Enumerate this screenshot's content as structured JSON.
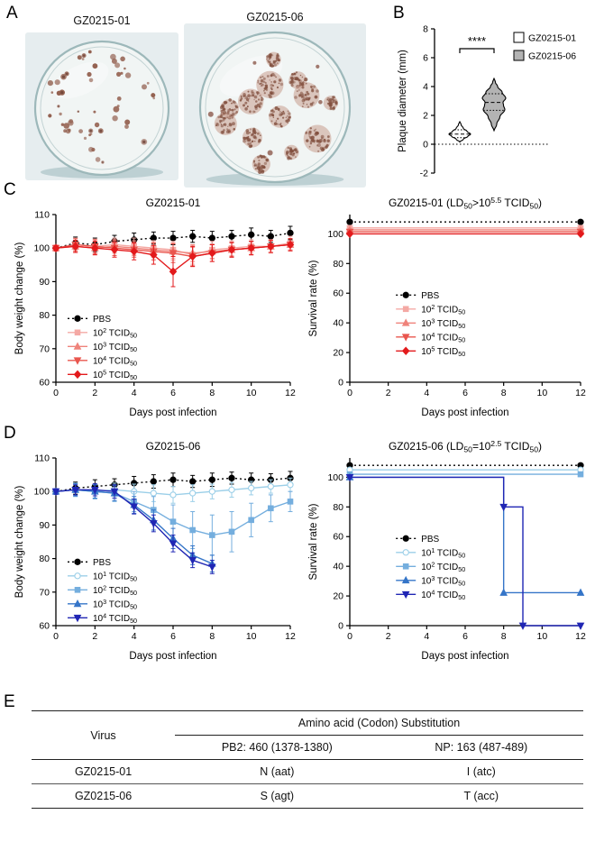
{
  "panels": {
    "A": "A",
    "B": "B",
    "C": "C",
    "D": "D",
    "E": "E"
  },
  "panelA": {
    "images": [
      {
        "label": "GZ0215-01",
        "plaque_count": 56,
        "plaque_size": "small"
      },
      {
        "label": "GZ0215-06",
        "plaque_count": 13,
        "plaque_size": "large"
      }
    ]
  },
  "chart_data": [
    {
      "id": "plaque-violin",
      "type": "violin",
      "ylabel": "Plaque diameter (mm)",
      "ylim": [
        -2,
        8
      ],
      "yticks": [
        -2,
        0,
        2,
        4,
        6,
        8
      ],
      "significance": "****",
      "zero_line": true,
      "legend": [
        {
          "label": "GZ0215-01",
          "fill": "#ffffff"
        },
        {
          "label": "GZ0215-06",
          "fill": "#b3b3b3"
        }
      ],
      "groups": [
        {
          "name": "GZ0215-01",
          "fill": "#ffffff",
          "median": 0.7,
          "q1": 0.45,
          "q3": 1.0,
          "min": 0.15,
          "max": 1.6,
          "profile": [
            [
              0.15,
              0
            ],
            [
              0.35,
              4
            ],
            [
              0.55,
              9
            ],
            [
              0.7,
              12
            ],
            [
              0.9,
              8
            ],
            [
              1.1,
              4
            ],
            [
              1.35,
              1.5
            ],
            [
              1.6,
              0
            ]
          ]
        },
        {
          "name": "GZ0215-06",
          "fill": "#b3b3b3",
          "median": 2.9,
          "q1": 2.35,
          "q3": 3.5,
          "min": 0.9,
          "max": 4.6,
          "profile": [
            [
              0.9,
              0
            ],
            [
              1.4,
              3
            ],
            [
              1.9,
              6.5
            ],
            [
              2.4,
              12
            ],
            [
              2.7,
              10.5
            ],
            [
              2.9,
              10
            ],
            [
              3.2,
              13
            ],
            [
              3.6,
              9
            ],
            [
              4.0,
              4
            ],
            [
              4.3,
              1.5
            ],
            [
              4.6,
              0
            ]
          ]
        }
      ]
    },
    {
      "id": "c-weight",
      "type": "line",
      "title": "GZ0215-01",
      "xlabel": "Days post infection",
      "ylabel": "Body weight change (%)",
      "xlim": [
        0,
        12
      ],
      "xticks": [
        0,
        2,
        4,
        6,
        8,
        10,
        12
      ],
      "ylim": [
        60,
        110
      ],
      "yticks": [
        60,
        70,
        80,
        90,
        100,
        110
      ],
      "x": [
        0,
        1,
        2,
        3,
        4,
        5,
        6,
        7,
        8,
        9,
        10,
        11,
        12
      ],
      "legend": {
        "x": 0.05,
        "y": 0.62
      },
      "series": [
        {
          "name": "PBS",
          "color": "#000000",
          "marker": "circle",
          "dash": "2,3",
          "values": [
            100,
            101.5,
            101,
            102,
            102.5,
            103,
            103,
            103.5,
            103,
            103.5,
            104,
            103.5,
            104.5
          ],
          "err": [
            0.8,
            1.8,
            2,
            1.8,
            2,
            1.8,
            2,
            1.8,
            2,
            1.8,
            2,
            1.8,
            2
          ]
        },
        {
          "name": "10^{2} TCID_{50}",
          "color": "#f4a9a4",
          "marker": "square",
          "values": [
            100,
            101,
            100.5,
            101,
            100.5,
            100,
            99.5,
            98,
            99.5,
            100,
            100.5,
            100.5,
            101.5
          ],
          "err": [
            0.8,
            2,
            2.2,
            2,
            2.5,
            2.2,
            2.5,
            2.8,
            2.5,
            2.2,
            2,
            2,
            2
          ]
        },
        {
          "name": "10^{3} TCID_{50}",
          "color": "#ef837b",
          "marker": "triangle-up",
          "values": [
            100,
            100.5,
            100,
            100.5,
            100,
            99.5,
            99,
            98.5,
            99,
            99.5,
            100,
            100.5,
            101
          ],
          "err": [
            0.8,
            1.8,
            2,
            2,
            2.2,
            2.2,
            2.5,
            2.5,
            2.2,
            2,
            2,
            1.8,
            1.8
          ]
        },
        {
          "name": "10^{4} TCID_{50}",
          "color": "#e9564e",
          "marker": "triangle-down",
          "values": [
            100,
            101,
            100.5,
            100,
            99.5,
            99,
            98.5,
            97.5,
            98.5,
            99.5,
            100,
            100.5,
            101
          ],
          "err": [
            0.8,
            1.8,
            2,
            2.2,
            2.2,
            2.5,
            2.8,
            2.8,
            2.5,
            2.2,
            2,
            1.8,
            1.8
          ]
        },
        {
          "name": "10^{5} TCID_{50}",
          "color": "#e31a1c",
          "marker": "diamond",
          "values": [
            100,
            100.5,
            100,
            99.5,
            99,
            98,
            93,
            97.5,
            98.5,
            99.5,
            100,
            100.5,
            101
          ],
          "err": [
            0.8,
            1.8,
            2,
            2.2,
            2.5,
            2.8,
            4.5,
            3,
            2.5,
            2.2,
            2,
            1.8,
            1.8
          ]
        }
      ]
    },
    {
      "id": "c-survival",
      "type": "line",
      "step": true,
      "title": "GZ0215-01 (LD_{50}>10^{5.5} TCID_{50})",
      "xlabel": "Days post infection",
      "ylabel": "Survival rate  (%)",
      "xlim": [
        0,
        12
      ],
      "xticks": [
        0,
        2,
        4,
        6,
        8,
        10,
        12
      ],
      "ylim": [
        0,
        113
      ],
      "yticks": [
        0,
        20,
        40,
        60,
        80,
        100
      ],
      "x": [
        0,
        1,
        2,
        3,
        4,
        5,
        6,
        7,
        8,
        9,
        10,
        11,
        12
      ],
      "legend": {
        "x": 0.2,
        "y": 0.48
      },
      "series": [
        {
          "name": "PBS",
          "color": "#000000",
          "marker": "circle",
          "dash": "2,3",
          "offset": 8,
          "values": [
            100,
            100,
            100,
            100,
            100,
            100,
            100,
            100,
            100,
            100,
            100,
            100,
            100
          ]
        },
        {
          "name": "10^{2} TCID_{50}",
          "color": "#f4a9a4",
          "marker": "square",
          "offset": 4,
          "values": [
            100,
            100,
            100,
            100,
            100,
            100,
            100,
            100,
            100,
            100,
            100,
            100,
            100
          ]
        },
        {
          "name": "10^{3} TCID_{50}",
          "color": "#ef837b",
          "marker": "triangle-up",
          "offset": 2.7,
          "values": [
            100,
            100,
            100,
            100,
            100,
            100,
            100,
            100,
            100,
            100,
            100,
            100,
            100
          ]
        },
        {
          "name": "10^{4} TCID_{50}",
          "color": "#e9564e",
          "marker": "triangle-down",
          "offset": 1.4,
          "values": [
            100,
            100,
            100,
            100,
            100,
            100,
            100,
            100,
            100,
            100,
            100,
            100,
            100
          ]
        },
        {
          "name": "10^{5} TCID_{50}",
          "color": "#e31a1c",
          "marker": "diamond",
          "offset": 0,
          "values": [
            100,
            100,
            100,
            100,
            100,
            100,
            100,
            100,
            100,
            100,
            100,
            100,
            100
          ]
        }
      ]
    },
    {
      "id": "d-weight",
      "type": "line",
      "title": "GZ0215-06",
      "xlabel": "Days post infection",
      "ylabel": "Body weight change (%)",
      "xlim": [
        0,
        12
      ],
      "xticks": [
        0,
        2,
        4,
        6,
        8,
        10,
        12
      ],
      "ylim": [
        60,
        110
      ],
      "yticks": [
        60,
        70,
        80,
        90,
        100,
        110
      ],
      "x": [
        0,
        1,
        2,
        3,
        4,
        5,
        6,
        7,
        8,
        9,
        10,
        11,
        12
      ],
      "legend": {
        "x": 0.05,
        "y": 0.62
      },
      "series": [
        {
          "name": "PBS",
          "color": "#000000",
          "marker": "circle",
          "dash": "2,3",
          "values": [
            100,
            101,
            101.5,
            102,
            102.5,
            103,
            103.5,
            103,
            103.5,
            104,
            103.5,
            103.5,
            104
          ],
          "err": [
            0.8,
            1.8,
            2,
            1.8,
            2,
            2,
            2,
            1.8,
            2,
            1.8,
            2,
            1.8,
            2
          ]
        },
        {
          "name": "10^{1} TCID_{50}",
          "color": "#9bcfe8",
          "marker": "circle",
          "open": true,
          "values": [
            100,
            100.5,
            100,
            100.5,
            100,
            99.5,
            99,
            99.5,
            100,
            100.5,
            101,
            101.5,
            102
          ],
          "err": [
            0.8,
            1.8,
            2,
            2,
            2.2,
            2.5,
            2.5,
            2.5,
            2.2,
            2.2,
            2,
            2,
            2
          ]
        },
        {
          "name": "10^{2} TCID_{50}",
          "color": "#74aede",
          "marker": "square",
          "values": [
            100,
            100.5,
            100,
            99.5,
            97,
            94.5,
            91,
            88.5,
            87,
            88,
            91.5,
            95,
            97
          ],
          "err": [
            0.8,
            2,
            2.2,
            2.5,
            3,
            4,
            5,
            5.5,
            6,
            6,
            5,
            4,
            3
          ]
        },
        {
          "name": "10^{3} TCID_{50}",
          "color": "#3575c8",
          "marker": "triangle-up",
          "values": [
            100,
            100.5,
            100,
            99.5,
            96,
            91.5,
            86,
            81,
            78.5,
            null,
            null,
            null,
            null
          ],
          "err": [
            0.8,
            1.8,
            2,
            2.2,
            2.5,
            3,
            3,
            2.8,
            2.5,
            null,
            null,
            null,
            null
          ]
        },
        {
          "name": "10^{4} TCID_{50}",
          "color": "#2026b4",
          "marker": "triangle-down",
          "values": [
            100,
            100.5,
            100.5,
            100,
            95.5,
            90.5,
            84.5,
            79.5,
            77.5,
            null,
            null,
            null,
            null
          ],
          "err": [
            0.8,
            1.5,
            1.8,
            2,
            2.2,
            2.5,
            2.5,
            2.2,
            2,
            null,
            null,
            null,
            null
          ]
        }
      ]
    },
    {
      "id": "d-survival",
      "type": "line",
      "step": true,
      "title": "GZ0215-06 (LD_{50}=10^{2.5} TCID_{50})",
      "xlabel": "Days post infection",
      "ylabel": "Survival rate  (%)",
      "xlim": [
        0,
        12
      ],
      "xticks": [
        0,
        2,
        4,
        6,
        8,
        10,
        12
      ],
      "ylim": [
        0,
        113
      ],
      "yticks": [
        0,
        20,
        40,
        60,
        80,
        100
      ],
      "x": [
        0,
        1,
        2,
        3,
        4,
        5,
        6,
        7,
        8,
        9,
        10,
        11,
        12
      ],
      "legend": {
        "x": 0.2,
        "y": 0.48
      },
      "series": [
        {
          "name": "PBS",
          "color": "#000000",
          "marker": "circle",
          "dash": "2,3",
          "offset": 8,
          "values": [
            100,
            100,
            100,
            100,
            100,
            100,
            100,
            100,
            100,
            100,
            100,
            100,
            100
          ]
        },
        {
          "name": "10^{1} TCID_{50}",
          "color": "#9bcfe8",
          "marker": "circle",
          "open": true,
          "offset": 5,
          "values": [
            100,
            100,
            100,
            100,
            100,
            100,
            100,
            100,
            100,
            100,
            100,
            100,
            100
          ]
        },
        {
          "name": "10^{2} TCID_{50}",
          "color": "#74aede",
          "marker": "square",
          "offset": 2,
          "values": [
            100,
            100,
            100,
            100,
            100,
            100,
            100,
            100,
            100,
            100,
            100,
            100,
            100
          ]
        },
        {
          "name": "10^{3} TCID_{50}",
          "color": "#3575c8",
          "marker": "triangle-up",
          "offset": 0,
          "values": [
            100,
            100,
            100,
            100,
            100,
            100,
            100,
            100,
            22.2,
            22.2,
            22.2,
            22.2,
            22.2
          ]
        },
        {
          "name": "10^{4} TCID_{50}",
          "color": "#2026b4",
          "marker": "triangle-down",
          "offset": 0,
          "values": [
            100,
            100,
            100,
            100,
            100,
            100,
            100,
            100,
            80,
            0,
            0,
            0,
            0
          ]
        }
      ]
    }
  ],
  "panelE": {
    "table": {
      "col1_header": "Virus",
      "span_header": "Amino acid (Codon) Substitution",
      "sub_headers": [
        "PB2: 460 (1378-1380)",
        "NP: 163 (487-489)"
      ],
      "rows": [
        [
          "GZ0215-01",
          "N (aat)",
          "I (atc)"
        ],
        [
          "GZ0215-06",
          "S (agt)",
          "T (acc)"
        ]
      ]
    }
  }
}
